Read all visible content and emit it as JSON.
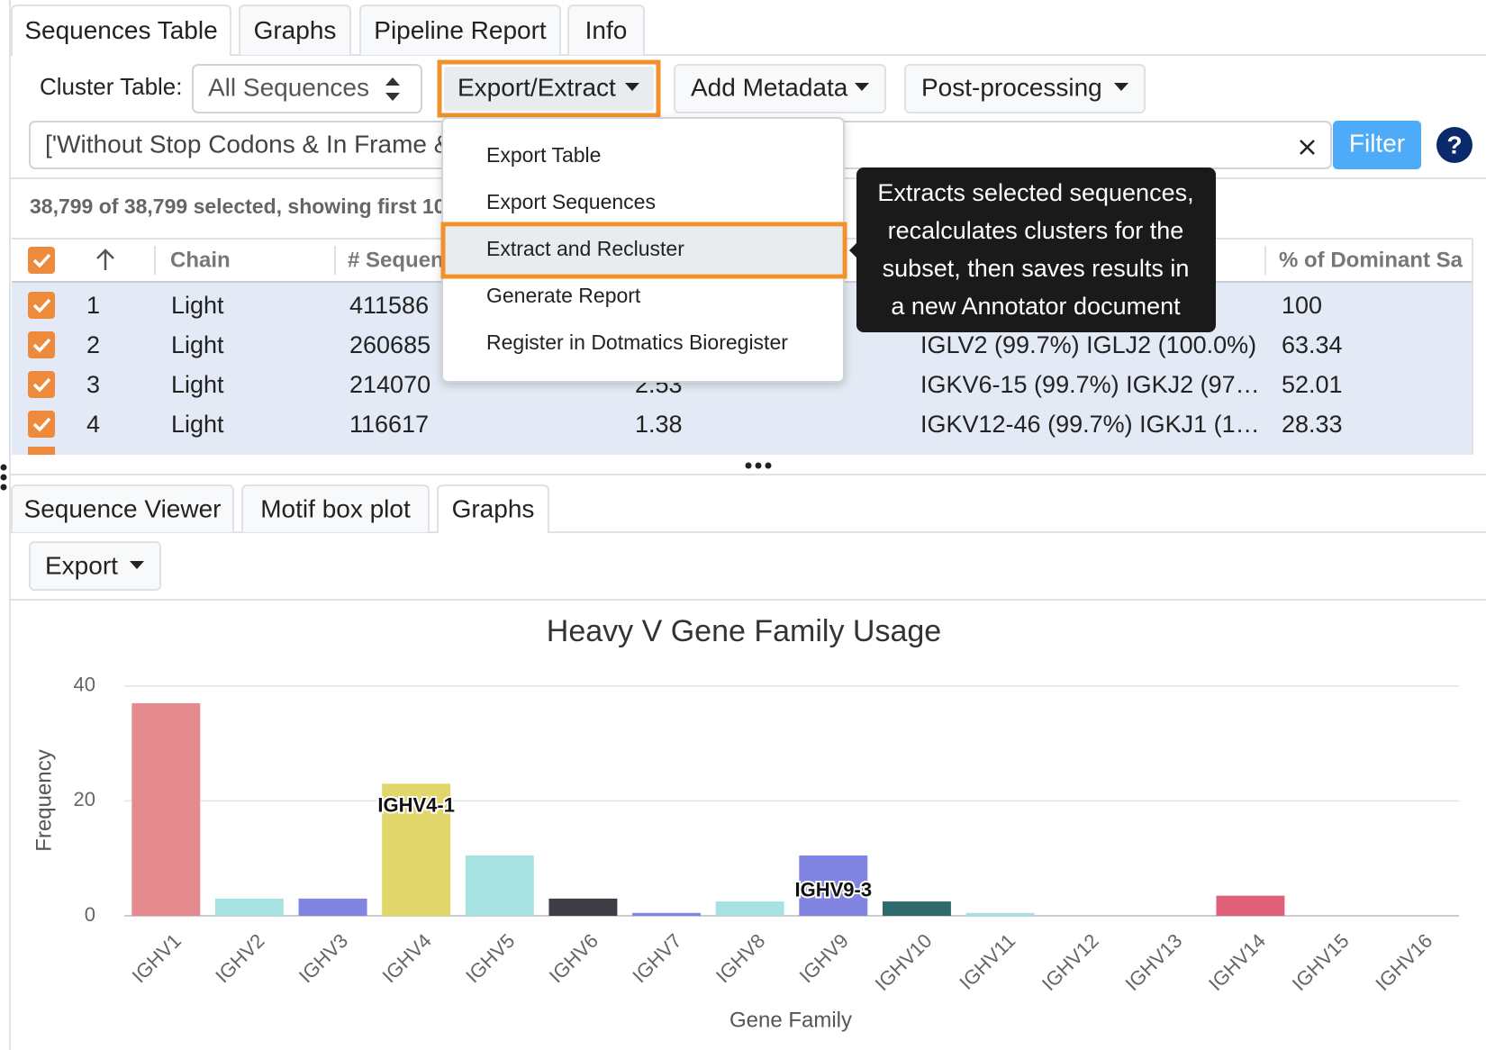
{
  "top_tabs": [
    "Sequences Table",
    "Graphs",
    "Pipeline Report",
    "Info"
  ],
  "top_active": 0,
  "toolbar": {
    "cluster_label": "Cluster Table:",
    "cluster_select": "All Sequences",
    "buttons": [
      "Export/Extract",
      "Add Metadata",
      "Post-processing"
    ]
  },
  "filter": {
    "query": "['Without Stop Codons & In Frame &",
    "button": "Filter",
    "help": "?"
  },
  "selection_summary": "38,799 of 38,799 selected, showing first 10",
  "table": {
    "headers": [
      "Chain",
      "# Sequences",
      null,
      null,
      "% of Dominant Sa"
    ],
    "rows": [
      [
        "1",
        "Light",
        "411586",
        null,
        null,
        "100"
      ],
      [
        "2",
        "Light",
        "260685",
        null,
        "IGLV2 (99.7%) IGLJ2 (100.0%)",
        "63.34"
      ],
      [
        "3",
        "Light",
        "214070",
        "2.53",
        "IGKV6-15 (99.7%) IGKJ2 (97…",
        "52.01"
      ],
      [
        "4",
        "Light",
        "116617",
        "1.38",
        "IGKV12-46 (99.7%) IGKJ1 (1…",
        "28.33"
      ]
    ]
  },
  "export_menu": {
    "items": [
      "Export Table",
      "Export Sequences",
      "Extract and Recluster",
      "Generate Report",
      "Register in Dotmatics Bioregister"
    ],
    "highlighted": 2
  },
  "tooltip": [
    "Extracts selected sequences,",
    "recalculates clusters for the",
    "subset, then saves results in",
    "a new Annotator document"
  ],
  "bottom_tabs": [
    "Sequence Viewer",
    "Motif box plot",
    "Graphs"
  ],
  "bottom_active": 2,
  "graph_export": "Export",
  "chart_data": {
    "type": "bar",
    "title": "Heavy V Gene Family Usage",
    "x_label": "Gene Family",
    "y_label": "Frequency",
    "categories": [
      "IGHV1",
      "IGHV2",
      "IGHV3",
      "IGHV4",
      "IGHV5",
      "IGHV6",
      "IGHV7",
      "IGHV8",
      "IGHV9",
      "IGHV10",
      "IGHV11",
      "IGHV12",
      "IGHV13",
      "IGHV14",
      "IGHV15",
      "IGHV16"
    ],
    "values": [
      37,
      3,
      3,
      23,
      10.5,
      3,
      0.5,
      2.5,
      10.5,
      2.5,
      0.5,
      0,
      0,
      3.5,
      0,
      0
    ],
    "colors": [
      "#e58a8f",
      "#a6e3e0",
      "#8184e0",
      "#e0d66a",
      "#a6e3e0",
      "#3e3f44",
      "#8184e0",
      "#a6e3e0",
      "#8184e0",
      "#2f6b6b",
      "#a6e3e0",
      "#cccccc",
      "#cccccc",
      "#e0607a",
      "#cccccc",
      "#cccccc"
    ],
    "ylim": [
      0,
      42
    ],
    "yticks": [
      0,
      20,
      40
    ],
    "grid": true,
    "annotations": [
      {
        "text": "IGHV4-1",
        "category": "IGHV4",
        "y": 19
      },
      {
        "text": "IGHV9-3",
        "category": "IGHV9",
        "y": 4.3
      }
    ]
  }
}
